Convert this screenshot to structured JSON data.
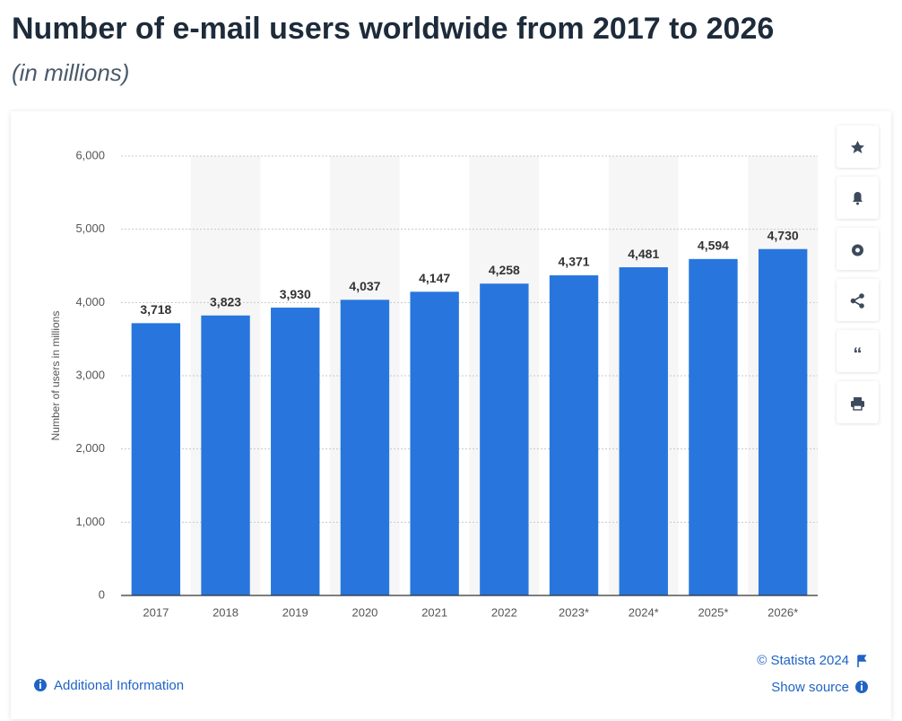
{
  "chart_data": {
    "type": "bar",
    "title": "Number of e-mail users worldwide from 2017 to 2026",
    "subtitle": "(in millions)",
    "y_label": "Number of users in millions",
    "categories": [
      "2017",
      "2018",
      "2019",
      "2020",
      "2021",
      "2022",
      "2023*",
      "2024*",
      "2025*",
      "2026*"
    ],
    "values": [
      3718,
      3823,
      3930,
      4037,
      4147,
      4258,
      4371,
      4481,
      4594,
      4730
    ],
    "value_labels": [
      "3,718",
      "3,823",
      "3,930",
      "4,037",
      "4,147",
      "4,258",
      "4,371",
      "4,481",
      "4,594",
      "4,730"
    ],
    "color": "#2876dd",
    "ylim": [
      0,
      6000
    ],
    "yticks": [
      0,
      {
        "value": 1000,
        "label": "1,000"
      },
      {
        "value": 2000,
        "label": "2,000"
      },
      {
        "value": 3000,
        "label": "3,000"
      },
      {
        "value": 4000,
        "label": "4,000"
      },
      {
        "value": 5000,
        "label": "5,000"
      },
      {
        "value": 6000,
        "label": "6,000"
      }
    ],
    "grid": true
  },
  "footer": {
    "credit": "© Statista 2024",
    "source_link": "Show source",
    "info_link": "Additional Information"
  }
}
